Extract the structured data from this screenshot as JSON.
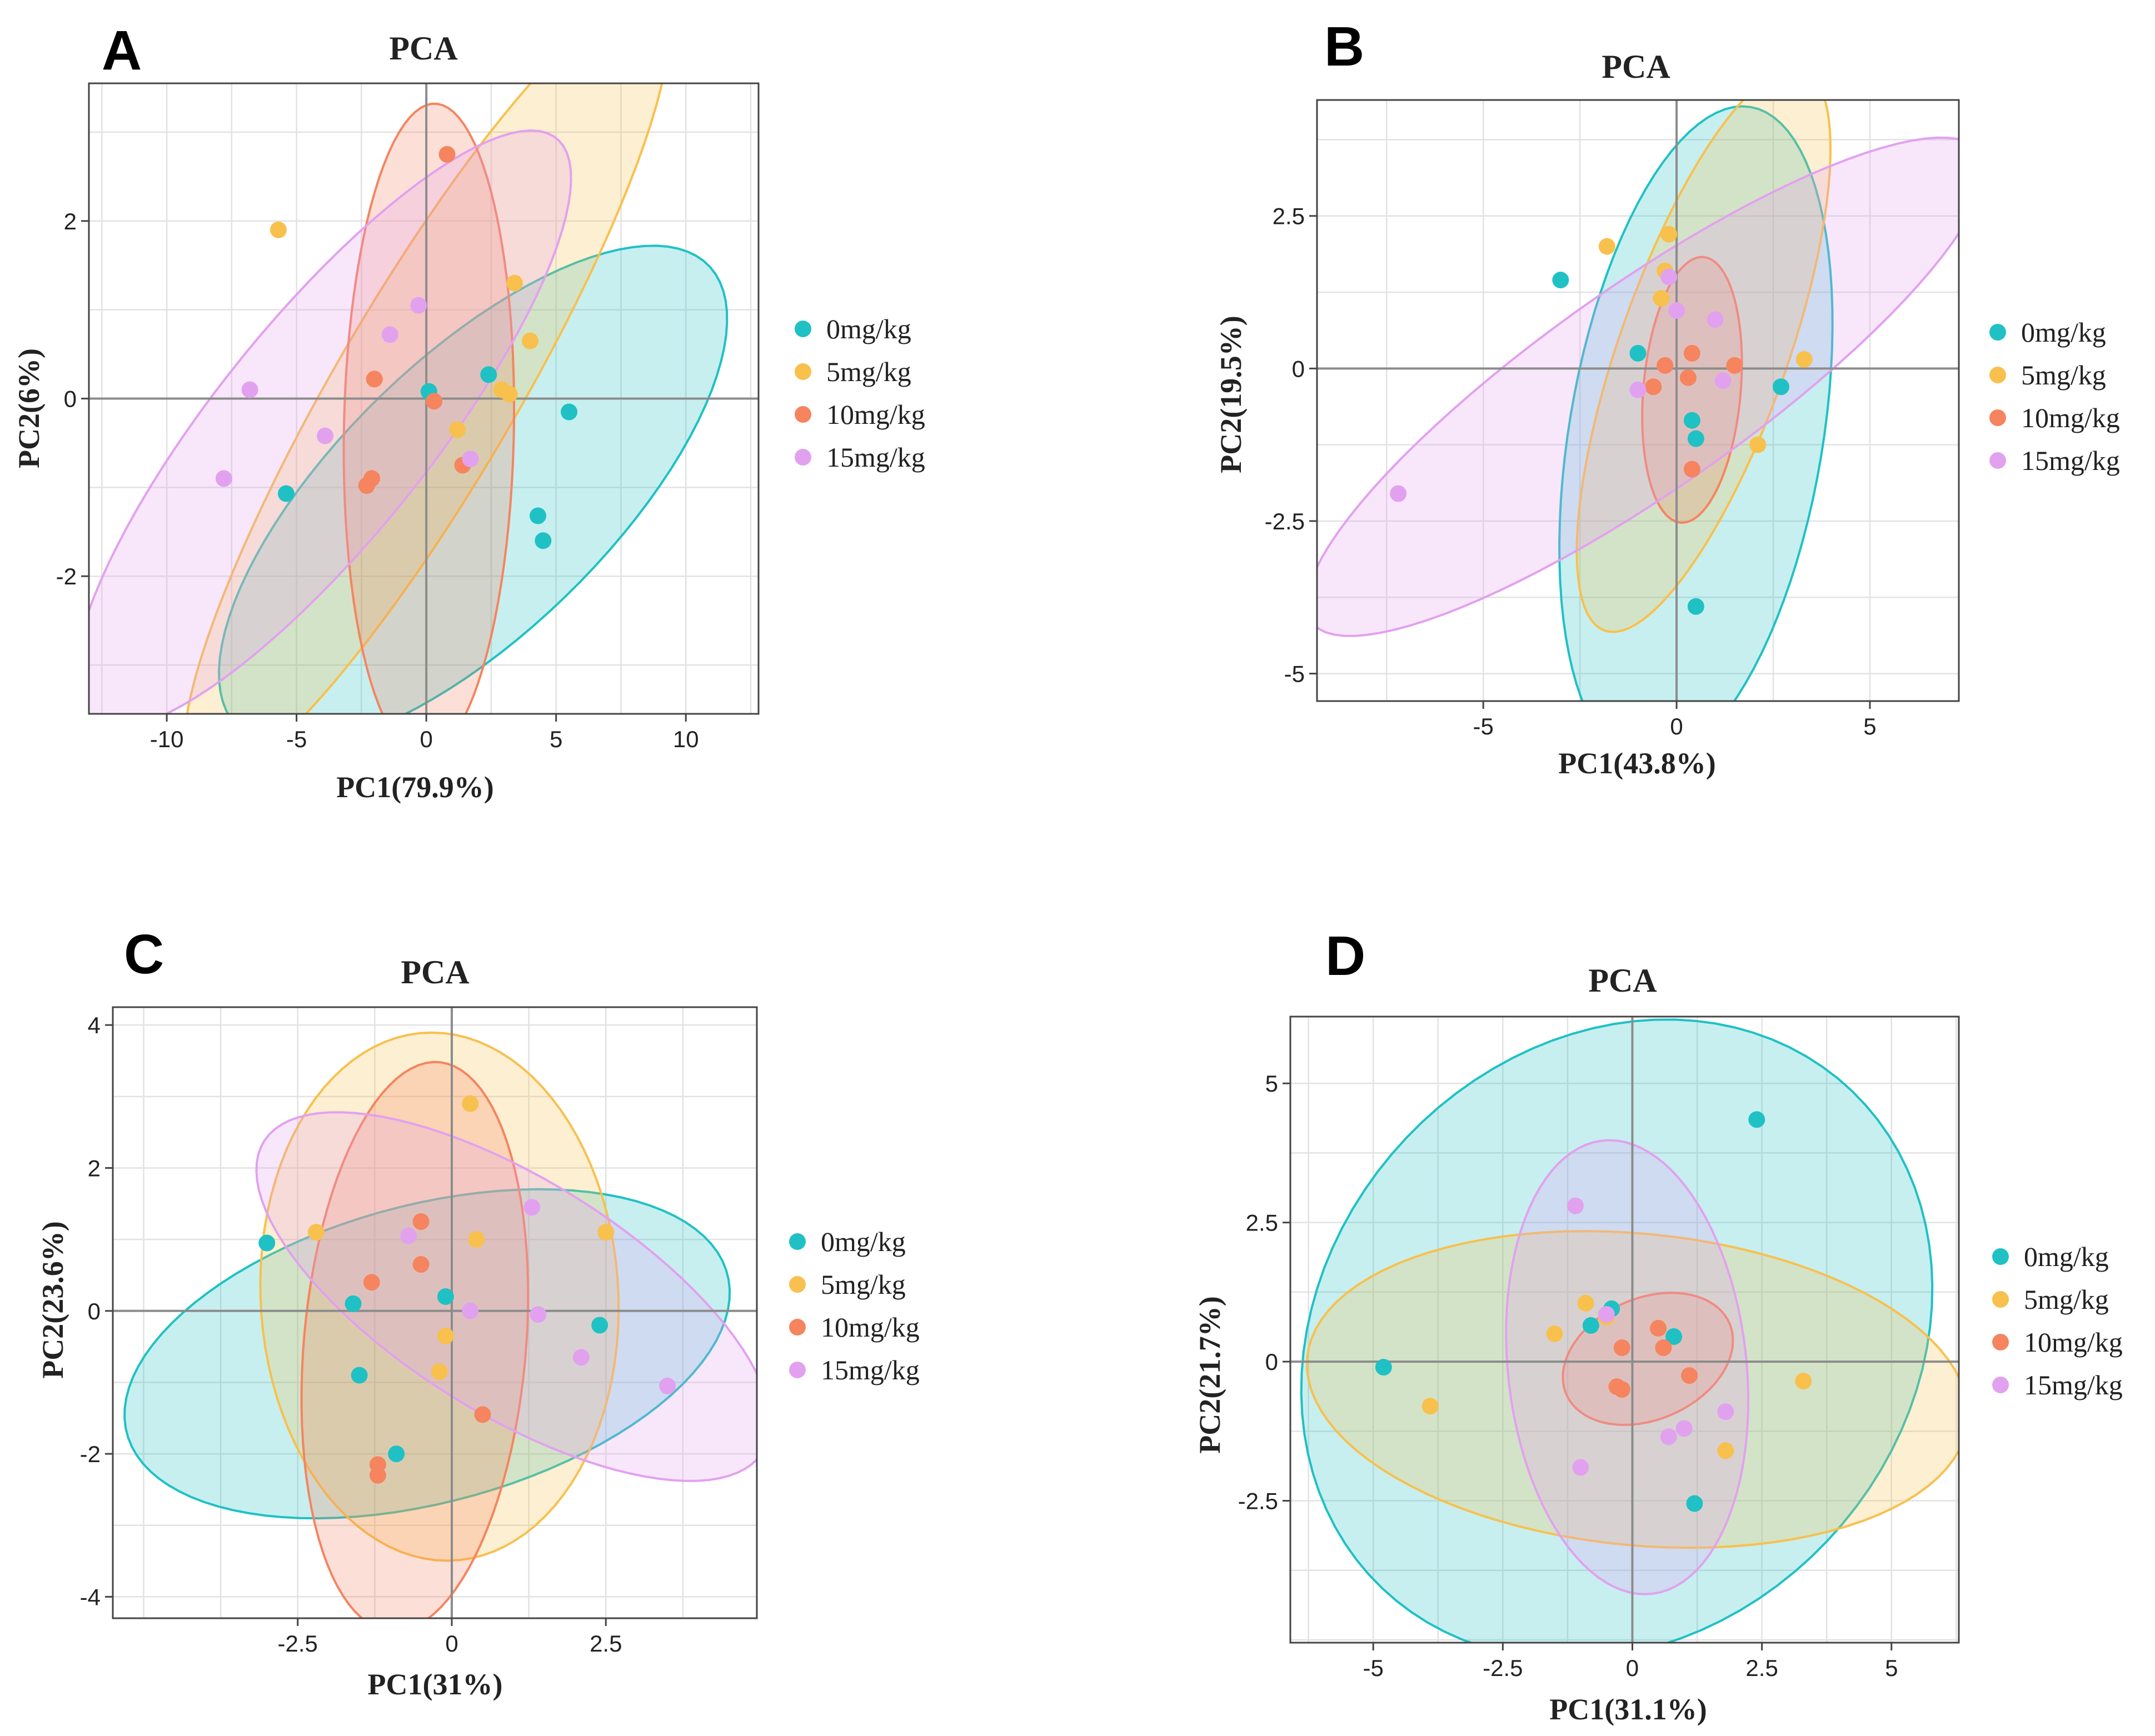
{
  "colors": {
    "g0": "#1fc1c4",
    "g5": "#f8c04d",
    "g10": "#f5845f",
    "g15": "#e2a1ef"
  },
  "chart_data": [
    {
      "type": "scatter",
      "panel": "A",
      "title": "PCA",
      "xlabel": "PC1(79.9%)",
      "ylabel": "PC2(6%)",
      "xlim": [
        -13,
        12.8
      ],
      "ylim": [
        -3.55,
        3.55
      ],
      "xticks": [
        -10,
        -5,
        0,
        5,
        10
      ],
      "xtick_labels": [
        "-10",
        "-5",
        "0",
        "5",
        "10"
      ],
      "yticks": [
        -2,
        0,
        2
      ],
      "ytick_labels": [
        "-2",
        "0",
        "2"
      ],
      "legend": [
        "0mg/kg",
        "5mg/kg",
        "10mg/kg",
        "15mg/kg"
      ],
      "series": [
        {
          "name": "0mg/kg",
          "x": [
            -5.4,
            0.1,
            2.4,
            5.5,
            4.3,
            4.5
          ],
          "y": [
            -1.07,
            0.08,
            0.27,
            -0.15,
            -1.32,
            -1.6
          ],
          "ellipse": {
            "cx": 1.8,
            "cy": -1.1,
            "rx": 10.0,
            "ry": 1.95,
            "angle": 12
          }
        },
        {
          "name": "5mg/kg",
          "x": [
            -5.7,
            3.4,
            4.0,
            2.9,
            3.2,
            1.2
          ],
          "y": [
            1.9,
            1.3,
            0.65,
            0.1,
            0.05,
            -0.35
          ],
          "ellipse": {
            "cx": 0.0,
            "cy": 0.1,
            "rx": 10.2,
            "ry": 1.75,
            "angle": 24
          }
        },
        {
          "name": "10mg/kg",
          "x": [
            0.8,
            -2.0,
            0.3,
            -2.3,
            -2.1,
            1.4
          ],
          "y": [
            2.75,
            0.22,
            -0.03,
            -0.98,
            -0.9,
            -0.75
          ],
          "ellipse": {
            "cx": 0.1,
            "cy": -0.35,
            "rx": 3.7,
            "ry": 3.25,
            "angle": 75
          }
        },
        {
          "name": "15mg/kg",
          "x": [
            -6.8,
            -7.8,
            -3.9,
            -1.4,
            -0.3,
            1.7
          ],
          "y": [
            0.1,
            -0.9,
            -0.42,
            0.72,
            1.05,
            -0.68
          ],
          "ellipse": {
            "cx": -4.0,
            "cy": -0.35,
            "rx": 10.0,
            "ry": 1.75,
            "angle": 17
          }
        }
      ]
    },
    {
      "type": "scatter",
      "panel": "B",
      "title": "PCA",
      "xlabel": "PC1(43.8%)",
      "ylabel": "PC2(19.5%)",
      "xlim": [
        -9.3,
        7.3
      ],
      "ylim": [
        -5.45,
        4.4
      ],
      "xticks": [
        -5,
        0,
        5
      ],
      "xtick_labels": [
        "-5",
        "0",
        "5"
      ],
      "yticks": [
        -5,
        -2.5,
        0,
        2.5
      ],
      "ytick_labels": [
        "-5",
        "-2.5",
        "0",
        "2.5"
      ],
      "legend": [
        "0mg/kg",
        "5mg/kg",
        "10mg/kg",
        "15mg/kg"
      ],
      "series": [
        {
          "name": "0mg/kg",
          "x": [
            -3.0,
            -1.0,
            0.4,
            0.5,
            2.7,
            0.5
          ],
          "y": [
            1.45,
            0.25,
            -0.85,
            -1.15,
            -0.3,
            -3.9
          ],
          "ellipse": {
            "cx": 0.5,
            "cy": -1.1,
            "rx": 5.6,
            "ry": 3.2,
            "angle": 71
          }
        },
        {
          "name": "5mg/kg",
          "x": [
            -1.8,
            -0.2,
            -0.3,
            -0.4,
            3.3,
            2.1
          ],
          "y": [
            2.0,
            2.2,
            1.6,
            1.15,
            0.15,
            -1.25
          ],
          "ellipse": {
            "cx": 0.7,
            "cy": 0.3,
            "rx": 5.3,
            "ry": 2.0,
            "angle": 58
          }
        },
        {
          "name": "10mg/kg",
          "x": [
            -0.3,
            -0.6,
            0.4,
            0.3,
            1.5,
            0.4
          ],
          "y": [
            0.05,
            -0.3,
            0.25,
            -0.15,
            0.05,
            -1.65
          ],
          "ellipse": {
            "cx": 0.4,
            "cy": -0.35,
            "rx": 2.2,
            "ry": 1.25,
            "angle": 80
          }
        },
        {
          "name": "15mg/kg",
          "x": [
            -7.2,
            -1.0,
            0.0,
            -0.2,
            1.0,
            1.2
          ],
          "y": [
            -2.05,
            -0.35,
            0.95,
            1.5,
            0.8,
            -0.2
          ],
          "ellipse": {
            "cx": -0.8,
            "cy": -0.3,
            "rx": 9.5,
            "ry": 1.85,
            "angle": 23
          }
        }
      ]
    },
    {
      "type": "scatter",
      "panel": "C",
      "title": "PCA",
      "xlabel": "PC1(31%)",
      "ylabel": "PC2(23.6%)",
      "xlim": [
        -5.5,
        4.95
      ],
      "ylim": [
        -4.3,
        4.25
      ],
      "xticks": [
        -2.5,
        0,
        2.5
      ],
      "xtick_labels": [
        "-2.5",
        "0",
        "2.5"
      ],
      "yticks": [
        -4,
        -2,
        0,
        2,
        4
      ],
      "ytick_labels": [
        "-4",
        "-2",
        "0",
        "2",
        "4"
      ],
      "legend": [
        "0mg/kg",
        "5mg/kg",
        "10mg/kg",
        "15mg/kg"
      ],
      "series": [
        {
          "name": "0mg/kg",
          "x": [
            -3.0,
            -1.6,
            -1.5,
            -0.9,
            -0.1,
            2.4
          ],
          "y": [
            0.95,
            0.1,
            -0.9,
            -2.0,
            0.2,
            -0.2
          ],
          "ellipse": {
            "cx": -0.4,
            "cy": -0.6,
            "rx": 5.0,
            "ry": 2.1,
            "angle": 12
          }
        },
        {
          "name": "5mg/kg",
          "x": [
            -2.2,
            0.3,
            0.4,
            2.5,
            -0.1,
            -0.2
          ],
          "y": [
            1.1,
            2.9,
            1.0,
            1.1,
            -0.35,
            -0.85
          ],
          "ellipse": {
            "cx": -0.2,
            "cy": 0.2,
            "rx": 3.7,
            "ry": 2.9,
            "angle": 95
          }
        },
        {
          "name": "10mg/kg",
          "x": [
            -0.5,
            -1.3,
            -0.5,
            0.5,
            -1.2,
            -1.2
          ],
          "y": [
            1.25,
            0.4,
            0.65,
            -1.45,
            -2.15,
            -2.3
          ],
          "ellipse": {
            "cx": -0.6,
            "cy": -0.5,
            "rx": 4.0,
            "ry": 1.8,
            "angle": 84
          }
        },
        {
          "name": "15mg/kg",
          "x": [
            -0.7,
            0.3,
            1.3,
            1.4,
            2.1,
            3.5
          ],
          "y": [
            1.05,
            0.0,
            1.45,
            -0.05,
            -0.65,
            -1.05
          ],
          "ellipse": {
            "cx": 1.0,
            "cy": 0.2,
            "rx": 4.6,
            "ry": 1.7,
            "angle": -27
          }
        }
      ]
    },
    {
      "type": "scatter",
      "panel": "D",
      "title": "PCA",
      "xlabel": "PC1(31.1%)",
      "ylabel": "PC2(21.7%)",
      "xlim": [
        -6.6,
        6.3
      ],
      "ylim": [
        -5.05,
        6.2
      ],
      "xticks": [
        -5,
        -2.5,
        0,
        2.5,
        5
      ],
      "xtick_labels": [
        "-5",
        "-2.5",
        "0",
        "2.5",
        "5"
      ],
      "yticks": [
        -2.5,
        0,
        2.5,
        5
      ],
      "ytick_labels": [
        "-2.5",
        "0",
        "2.5",
        "5"
      ],
      "legend": [
        "0mg/kg",
        "5mg/kg",
        "10mg/kg",
        "15mg/kg"
      ],
      "series": [
        {
          "name": "0mg/kg",
          "x": [
            -4.8,
            -0.4,
            -0.8,
            0.8,
            1.2,
            2.4
          ],
          "y": [
            -0.1,
            0.95,
            0.65,
            0.45,
            -2.55,
            4.35
          ],
          "ellipse": {
            "cx": -0.3,
            "cy": 0.4,
            "rx": 6.4,
            "ry": 5.4,
            "angle": 35
          }
        },
        {
          "name": "5mg/kg",
          "x": [
            -3.9,
            -1.5,
            -0.9,
            3.3,
            1.8,
            -0.5
          ],
          "y": [
            -0.8,
            0.5,
            1.05,
            -0.35,
            -1.6,
            0.8
          ],
          "ellipse": {
            "cx": 0.1,
            "cy": -0.5,
            "rx": 6.4,
            "ry": 2.8,
            "angle": -5
          }
        },
        {
          "name": "10mg/kg",
          "x": [
            -0.2,
            0.5,
            0.6,
            1.1,
            -0.2,
            -0.3
          ],
          "y": [
            0.25,
            0.6,
            0.25,
            -0.25,
            -0.5,
            -0.45
          ],
          "ellipse": {
            "cx": 0.3,
            "cy": 0.05,
            "rx": 1.7,
            "ry": 1.1,
            "angle": 20
          }
        },
        {
          "name": "15mg/kg",
          "x": [
            -0.5,
            -1.1,
            1.8,
            1.0,
            0.7,
            -1.0
          ],
          "y": [
            0.85,
            2.8,
            -0.9,
            -1.2,
            -1.35,
            -1.9
          ],
          "ellipse": {
            "cx": -0.1,
            "cy": -0.1,
            "rx": 4.1,
            "ry": 2.3,
            "angle": 97
          }
        }
      ]
    }
  ]
}
